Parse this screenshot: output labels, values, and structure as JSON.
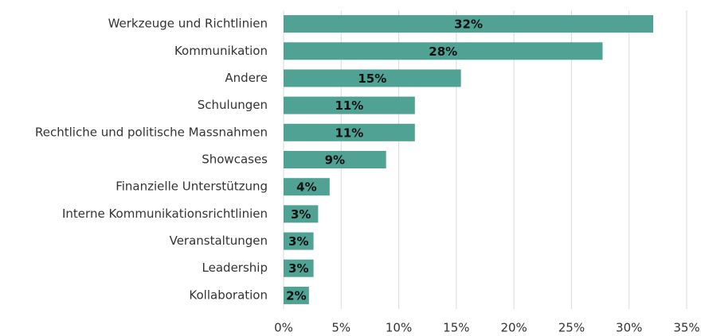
{
  "chart_data": {
    "type": "barh",
    "categories": [
      "Werkzeuge und Richtlinien",
      "Kommunikation",
      "Andere",
      "Schulungen",
      "Rechtliche und politische Massnahmen",
      "Showcases",
      "Finanzielle Unterstützung",
      "Interne Kommunikationsrichtlinien",
      "Veranstaltungen",
      "Leadership",
      "Kollaboration"
    ],
    "values": [
      32.1,
      27.7,
      15.4,
      11.4,
      11.4,
      8.9,
      4.0,
      3.0,
      2.6,
      2.6,
      2.2
    ],
    "value_labels": [
      "32%",
      "28%",
      "15%",
      "11%",
      "11%",
      "9%",
      "4%",
      "3%",
      "3%",
      "3%",
      "2%"
    ],
    "color": "#4fa294",
    "xlim": [
      0,
      35
    ],
    "xticks": [
      {
        "value": 0,
        "label": "0%"
      },
      {
        "value": 5,
        "label": "5%"
      },
      {
        "value": 10,
        "label": "10%"
      },
      {
        "value": 15,
        "label": "15%"
      },
      {
        "value": 20,
        "label": "20%"
      },
      {
        "value": 25,
        "label": "25%"
      },
      {
        "value": 30,
        "label": "30%"
      },
      {
        "value": 35,
        "label": "35%"
      }
    ],
    "grid": true
  }
}
